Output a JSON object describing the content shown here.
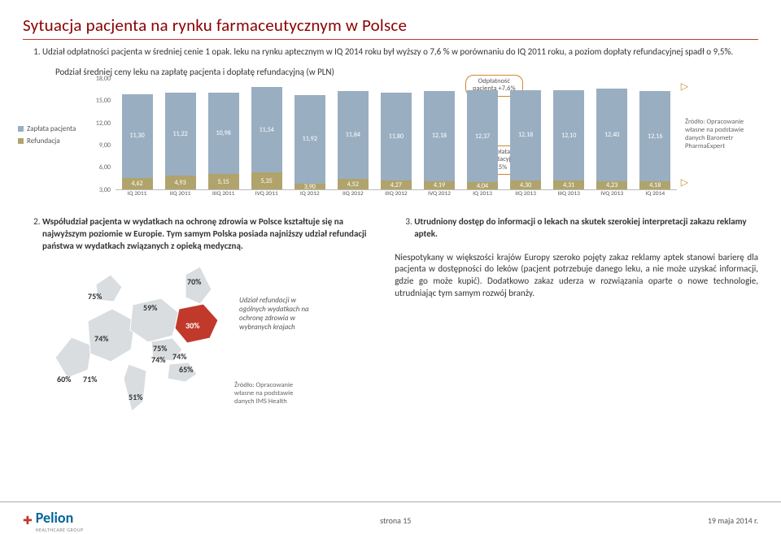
{
  "title": "Sytuacja pacjenta na rynku farmaceutycznym w Polsce",
  "intro_point": "Udział odpłatności pacjenta w średniej cenie 1 opak. leku na rynku aptecznym w IQ 2014 roku był wyższy o 7,6 % w porównaniu do IQ 2011 roku, a poziom dopłaty refundacyjnej spadł o 9,5%.",
  "chart": {
    "caption": "Podział średniej ceny leku na zapłatę pacjenta i dopłatę  refundacyjną (w PLN)",
    "legend_pay": "Zapłata pacjenta",
    "legend_ref": "Refundacja",
    "ymax": 18,
    "ymin": 3,
    "ylabels": [
      "18,00",
      "15,00",
      "12,00",
      "9,00",
      "6,00",
      "3,00"
    ],
    "bars": [
      {
        "x": "IQ 2011",
        "pay": 11.3,
        "ref": 4.62,
        "pay_l": "11,30",
        "ref_l": "4,62"
      },
      {
        "x": "IIQ 2011",
        "pay": 11.22,
        "ref": 4.93,
        "pay_l": "11,22",
        "ref_l": "4,93"
      },
      {
        "x": "IIIQ 2011",
        "pay": 10.98,
        "ref": 5.15,
        "pay_l": "10,98",
        "ref_l": "5,15"
      },
      {
        "x": "IVQ 2011",
        "pay": 11.54,
        "ref": 5.35,
        "pay_l": "11,54",
        "ref_l": "5,35"
      },
      {
        "x": "IQ 2012",
        "pay": 11.92,
        "ref": 3.9,
        "pay_l": "11,92",
        "ref_l": "3,90"
      },
      {
        "x": "IIQ 2012",
        "pay": 11.84,
        "ref": 4.52,
        "pay_l": "11,84",
        "ref_l": "4,52"
      },
      {
        "x": "IIIQ 2012",
        "pay": 11.8,
        "ref": 4.27,
        "pay_l": "11,80",
        "ref_l": "4,27"
      },
      {
        "x": "IVQ 2012",
        "pay": 12.18,
        "ref": 4.19,
        "pay_l": "12,18",
        "ref_l": "4,19"
      },
      {
        "x": "IQ 2013",
        "pay": 12.37,
        "ref": 4.04,
        "pay_l": "12,37",
        "ref_l": "4,04"
      },
      {
        "x": "IIQ 2013",
        "pay": 12.18,
        "ref": 4.3,
        "pay_l": "12,18",
        "ref_l": "4,30"
      },
      {
        "x": "IIIQ 2013",
        "pay": 12.1,
        "ref": 4.31,
        "pay_l": "12,10",
        "ref_l": "4,31"
      },
      {
        "x": "IVQ 2013",
        "pay": 12.4,
        "ref": 4.23,
        "pay_l": "12,40",
        "ref_l": "4,23"
      },
      {
        "x": "IQ 2014",
        "pay": 12.16,
        "ref": 4.18,
        "pay_l": "12,16",
        "ref_l": "4,18"
      }
    ],
    "bubble_top_l1": "Odpłatność",
    "bubble_top_l2": "pacjenta +7,6%",
    "bubble_bot_l1": "Dopłata",
    "bubble_bot_l2": "refundacyjna",
    "bubble_bot_l3": "-9,5%",
    "source_l1": "Źródło: Opracowanie",
    "source_l2": "własne na podstawie",
    "source_l3": "danych Barometr",
    "source_l4": "PharmaExpert"
  },
  "point2": "Współudział pacjenta w wydatkach na ochronę zdrowia w Polsce kształtuje się na najwyższym poziomie w Europie. Tym samym Polska posiada najniższy udział refundacji państwa w wydatkach związanych z opieką medyczną.",
  "point3_title": "Utrudniony dostęp do informacji o lekach na skutek szerokiej interpretacji  zakazu reklamy aptek.",
  "point3_para": "Niespotykany w większości krajów Europy szeroko pojęty zakaz reklamy aptek stanowi barierę dla pacjenta w dostępności do leków (pacjent potrzebuje danego leku, a nie może uzyskać informacji, gdzie go może kupić). Dodatkowo zakaz uderza w rozwiązania oparte o nowe technologie, utrudniając tym samym rozwój branży.",
  "map": {
    "label": "Udział refundacji w ogólnych wydatkach na ochronę zdrowia w wybranych krajach",
    "src_l1": "Źródło: Opracowanie",
    "src_l2": "własne na podstawie",
    "src_l3": "danych IMS Health",
    "pcts": {
      "uk": "75%",
      "fr": "74%",
      "de": "59%",
      "es": "60%",
      "pt": "71%",
      "it": "51%",
      "pl": "30%",
      "cz": "75%",
      "sk": "74%",
      "hu": "65%",
      "at": "74%",
      "fi": "70%"
    }
  },
  "footer": {
    "page": "strona 15",
    "date": "19 maja 2014 r.",
    "logo_text": "Pelion",
    "logo_sub": "HEALTHCARE GROUP"
  }
}
